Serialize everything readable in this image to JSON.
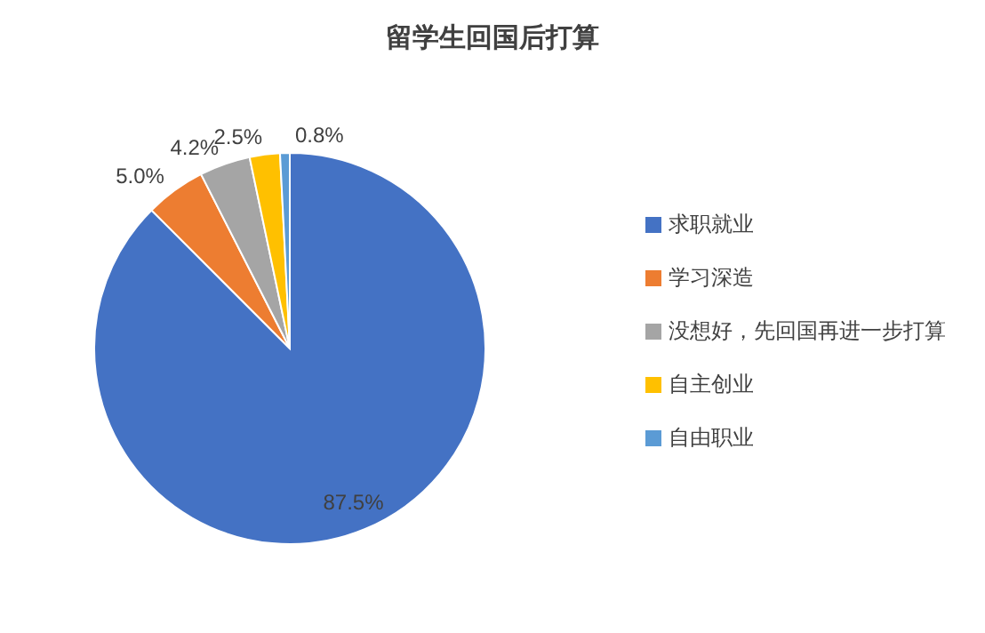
{
  "chart_data": {
    "type": "pie",
    "title": "留学生回国后打算",
    "categories": [
      "求职就业",
      "学习深造",
      "没想好，先回国再进一步打算",
      "自主创业",
      "自由职业"
    ],
    "values": [
      87.5,
      5.0,
      4.2,
      2.5,
      0.8
    ],
    "colors": [
      "#4472c4",
      "#ed7d31",
      "#a5a5a5",
      "#ffc000",
      "#5b9bd5"
    ],
    "value_labels": [
      "87.5%",
      "5.0%",
      "4.2%",
      "2.5%",
      "0.8%"
    ],
    "legend": "right"
  }
}
